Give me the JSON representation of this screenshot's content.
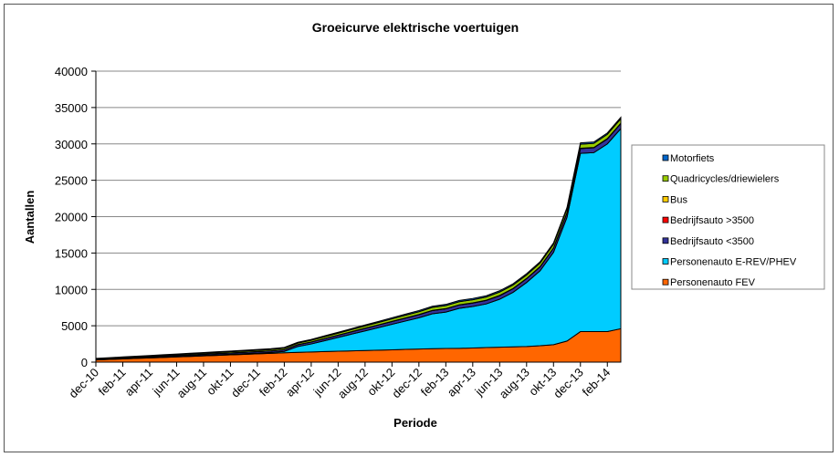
{
  "chart_data": {
    "type": "area",
    "stacked": true,
    "title": "Groeicurve elektrische voertuigen",
    "xlabel": "Periode",
    "ylabel": "Aantallen",
    "ylim": [
      0,
      40000
    ],
    "yticks": [
      0,
      5000,
      10000,
      15000,
      20000,
      25000,
      30000,
      35000,
      40000
    ],
    "grid": true,
    "legend_position": "right",
    "x": [
      "dec-10",
      "jan-11",
      "feb-11",
      "mrt-11",
      "apr-11",
      "mei-11",
      "jun-11",
      "jul-11",
      "aug-11",
      "sep-11",
      "okt-11",
      "nov-11",
      "dec-11",
      "jan-12",
      "feb-12",
      "mrt-12",
      "apr-12",
      "mei-12",
      "jun-12",
      "jul-12",
      "aug-12",
      "sep-12",
      "okt-12",
      "nov-12",
      "dec-12",
      "jan-13",
      "feb-13",
      "mrt-13",
      "apr-13",
      "mei-13",
      "jun-13",
      "jul-13",
      "aug-13",
      "sep-13",
      "okt-13",
      "nov-13",
      "dec-13",
      "jan-14",
      "feb-14",
      "mrt-14"
    ],
    "xtick_labels": [
      "dec-10",
      "feb-11",
      "apr-11",
      "jun-11",
      "aug-11",
      "okt-11",
      "dec-11",
      "feb-12",
      "apr-12",
      "jun-12",
      "aug-12",
      "okt-12",
      "dec-12",
      "feb-13",
      "apr-13",
      "jun-13",
      "aug-13",
      "okt-13",
      "dec-13",
      "feb-14"
    ],
    "series": [
      {
        "name": "Personenauto FEV",
        "color": "#FF6600",
        "values": [
          300,
          370,
          440,
          510,
          580,
          650,
          720,
          790,
          860,
          930,
          1000,
          1070,
          1140,
          1210,
          1280,
          1350,
          1400,
          1450,
          1500,
          1550,
          1600,
          1650,
          1700,
          1750,
          1800,
          1850,
          1880,
          1900,
          1950,
          2000,
          2050,
          2100,
          2150,
          2250,
          2400,
          2900,
          4200,
          4200,
          4200,
          4600
        ]
      },
      {
        "name": "Personenauto E-REV/PHEV",
        "color": "#00CCFF",
        "values": [
          20,
          25,
          30,
          35,
          40,
          45,
          50,
          55,
          60,
          70,
          80,
          90,
          100,
          120,
          200,
          800,
          1100,
          1500,
          1900,
          2300,
          2700,
          3100,
          3500,
          3900,
          4300,
          4800,
          5000,
          5500,
          5700,
          6000,
          6600,
          7500,
          8800,
          10300,
          12700,
          17000,
          24500,
          24600,
          25800,
          27500
        ]
      },
      {
        "name": "Bedrijfsauto <3500",
        "color": "#333399",
        "values": [
          80,
          90,
          100,
          110,
          120,
          130,
          140,
          150,
          160,
          170,
          180,
          190,
          200,
          210,
          220,
          240,
          260,
          280,
          300,
          320,
          340,
          360,
          380,
          400,
          420,
          440,
          450,
          460,
          470,
          480,
          490,
          500,
          520,
          540,
          560,
          600,
          650,
          660,
          680,
          700
        ]
      },
      {
        "name": "Bedrijfsauto >3500",
        "color": "#FF0000",
        "values": [
          5,
          5,
          5,
          5,
          5,
          5,
          5,
          5,
          5,
          5,
          5,
          5,
          5,
          5,
          5,
          5,
          5,
          5,
          5,
          10,
          10,
          10,
          10,
          10,
          10,
          10,
          10,
          10,
          10,
          10,
          15,
          15,
          15,
          15,
          15,
          15,
          20,
          20,
          20,
          20
        ]
      },
      {
        "name": "Bus",
        "color": "#FFCC00",
        "values": [
          10,
          10,
          10,
          10,
          10,
          10,
          10,
          10,
          10,
          10,
          10,
          10,
          10,
          10,
          10,
          15,
          15,
          15,
          15,
          15,
          15,
          15,
          20,
          20,
          20,
          20,
          20,
          20,
          20,
          20,
          25,
          25,
          25,
          25,
          25,
          25,
          30,
          30,
          30,
          30
        ]
      },
      {
        "name": "Quadricycles/driewielers",
        "color": "#99CC00",
        "values": [
          60,
          70,
          80,
          90,
          100,
          110,
          120,
          130,
          140,
          150,
          160,
          170,
          180,
          190,
          200,
          210,
          220,
          240,
          260,
          280,
          300,
          320,
          340,
          360,
          380,
          400,
          410,
          420,
          430,
          440,
          450,
          460,
          470,
          480,
          500,
          520,
          550,
          560,
          580,
          600
        ]
      },
      {
        "name": "Motorfiets",
        "color": "#0066CC",
        "values": [
          40,
          45,
          50,
          55,
          60,
          65,
          70,
          75,
          80,
          85,
          90,
          95,
          100,
          105,
          110,
          115,
          120,
          125,
          130,
          135,
          140,
          145,
          150,
          155,
          160,
          165,
          170,
          172,
          174,
          176,
          178,
          180,
          182,
          184,
          186,
          188,
          190,
          194,
          197,
          200
        ]
      }
    ]
  }
}
